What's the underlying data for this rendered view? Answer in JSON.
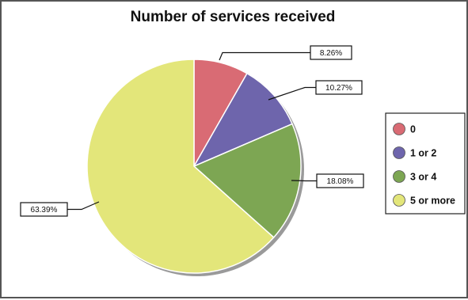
{
  "chart_data": {
    "type": "pie",
    "title": "Number of services received",
    "categories": [
      "0",
      "1 or 2",
      "3 or 4",
      "5 or more"
    ],
    "values": [
      8.26,
      10.27,
      18.08,
      63.39
    ],
    "data_labels": [
      "8.26%",
      "10.27%",
      "18.08%",
      "63.39%"
    ],
    "colors": [
      "#d96b74",
      "#6e65ac",
      "#7da653",
      "#e3e67a"
    ],
    "legend_position": "right",
    "unit": "%"
  }
}
